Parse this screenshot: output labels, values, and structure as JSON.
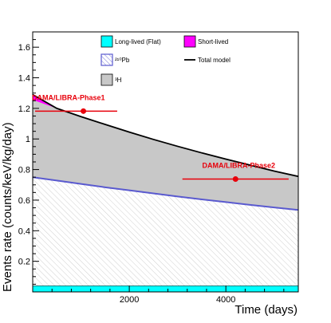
{
  "chart_data": {
    "type": "area",
    "xlabel": "Time (days)",
    "ylabel": "Events rate (counts/keV/kg/day)",
    "xlim": [
      0,
      5500
    ],
    "ylim": [
      0,
      1.7
    ],
    "xticks": [
      2000,
      4000
    ],
    "yticks": [
      0.2,
      0.4,
      0.6,
      0.8,
      1,
      1.2,
      1.4,
      1.6
    ],
    "ytick_labels": [
      "0.2",
      "0.4",
      "0.6",
      "0.8",
      "1",
      "1.2",
      "1.4",
      "1.6"
    ],
    "grid": false,
    "legend": {
      "placement": "top",
      "entries": [
        {
          "key": "flat",
          "label": "Long-lived (Flat)",
          "color": "#00ffff",
          "style": "fill"
        },
        {
          "key": "short",
          "label": "Short-lived",
          "color": "#ff00ff",
          "style": "fill"
        },
        {
          "key": "pb",
          "label": "²¹⁰Pb",
          "color": "#5a5acf",
          "style": "hatch"
        },
        {
          "key": "total",
          "label": "Total model",
          "color": "#000000",
          "style": "line"
        },
        {
          "key": "h3",
          "label": "³H",
          "color": "#c8c8c8",
          "style": "fill"
        }
      ]
    },
    "x": [
      0,
      500,
      1000,
      1500,
      2000,
      2500,
      3000,
      3500,
      4000,
      4500,
      5000,
      5500
    ],
    "series": [
      {
        "name": "Long-lived (Flat)",
        "values": [
          0.04,
          0.04,
          0.04,
          0.04,
          0.04,
          0.04,
          0.04,
          0.04,
          0.04,
          0.04,
          0.04,
          0.04
        ]
      },
      {
        "name": "²¹⁰Pb",
        "values": [
          0.75,
          0.728,
          0.706,
          0.684,
          0.664,
          0.644,
          0.624,
          0.605,
          0.587,
          0.569,
          0.552,
          0.536
        ]
      },
      {
        "name": "³H",
        "values": [
          1.255,
          1.2,
          1.146,
          1.095,
          1.045,
          0.997,
          0.952,
          0.909,
          0.868,
          0.829,
          0.79,
          0.755
        ]
      },
      {
        "name": "Short-lived",
        "values": [
          1.295,
          1.202,
          1.146,
          1.095,
          1.045,
          0.997,
          0.952,
          0.909,
          0.868,
          0.829,
          0.79,
          0.755
        ]
      },
      {
        "name": "Total model",
        "values": [
          1.29,
          1.2,
          1.146,
          1.095,
          1.045,
          0.997,
          0.952,
          0.909,
          0.868,
          0.829,
          0.79,
          0.755
        ]
      }
    ],
    "measurements": [
      {
        "label": "DAMA/LIBRA-Phase1",
        "x": 1050,
        "y": 1.182,
        "xerr_low": 1000,
        "xerr_high": 700,
        "color": "#e8000b"
      },
      {
        "label": "DAMA/LIBRA-Phase2",
        "x": 4200,
        "y": 0.738,
        "xerr_low": 1100,
        "xerr_high": 1100,
        "color": "#e8000b"
      }
    ]
  }
}
